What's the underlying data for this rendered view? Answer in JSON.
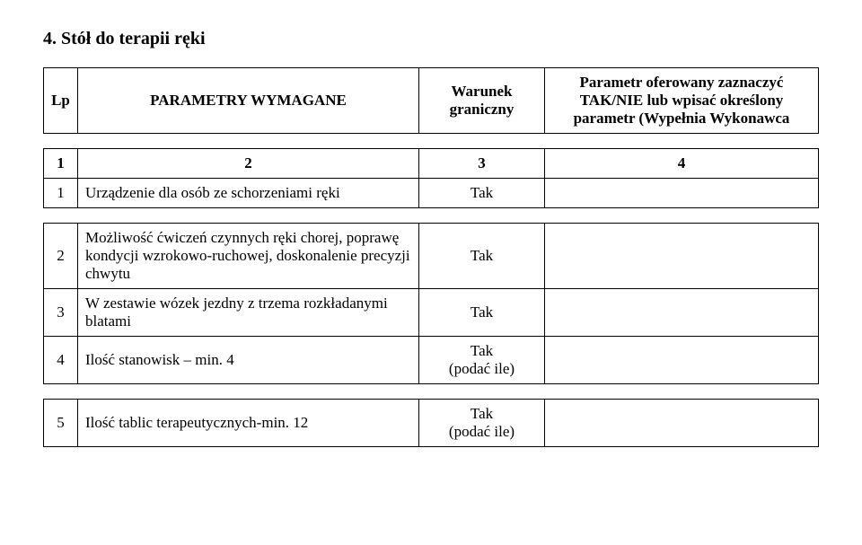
{
  "title": "4.  Stół do terapii ręki",
  "head": {
    "lp": "Lp",
    "param": "PARAMETRY WYMAGANE",
    "war": "Warunek graniczny",
    "off": "Parametr oferowany zaznaczyć TAK/NIE lub wpisać określony parametr (Wypełnia Wykonawca"
  },
  "numRow": {
    "c1": "1",
    "c2": "2",
    "c3": "3",
    "c4": "4"
  },
  "rows": [
    {
      "n": "1",
      "param": "Urządzenie dla osób ze schorzeniami ręki",
      "war": "Tak",
      "off": ""
    },
    {
      "n": "2",
      "param": "Możliwość ćwiczeń czynnych ręki chorej, poprawę kondycji wzrokowo-ruchowej, doskonalenie precyzji chwytu",
      "war": "Tak",
      "off": ""
    },
    {
      "n": "3",
      "param": "W zestawie wózek jezdny z trzema rozkładanymi blatami",
      "war": "Tak",
      "off": ""
    },
    {
      "n": "4",
      "param": "Ilość stanowisk – min. 4",
      "war": "Tak\n(podać ile)",
      "off": ""
    },
    {
      "n": "5",
      "param": "Ilość tablic terapeutycznych-min. 12",
      "war": "Tak\n(podać ile)",
      "off": ""
    }
  ]
}
